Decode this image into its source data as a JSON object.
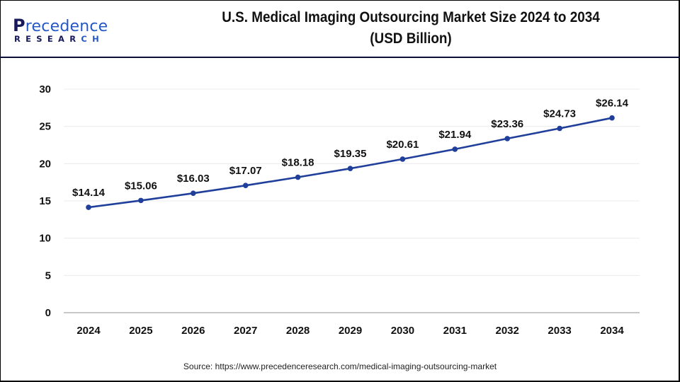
{
  "brand": {
    "logo_main_prefix": "P",
    "logo_main_rest": "recedence",
    "logo_sub_left": "RESEAR",
    "logo_sub_right": "CH"
  },
  "header": {
    "title_line1": "U.S. Medical Imaging Outsourcing Market Size 2024 to 2034",
    "title_line2": "(USD Billion)"
  },
  "footer": {
    "source": "Source: https://www.precedenceresearch.com/medical-imaging-outsourcing-market"
  },
  "colors": {
    "series_line": "#1f3f9b",
    "grid": "#ececec",
    "axis": "#b5b5b5",
    "header_divider": "#0b0f3a"
  },
  "chart_data": {
    "type": "line",
    "title": "U.S. Medical Imaging Outsourcing Market Size 2024 to 2034 (USD Billion)",
    "xlabel": "",
    "ylabel": "",
    "categories": [
      "2024",
      "2025",
      "2026",
      "2027",
      "2028",
      "2029",
      "2030",
      "2031",
      "2032",
      "2033",
      "2034"
    ],
    "series": [
      {
        "name": "Market Size (USD Billion)",
        "values": [
          14.14,
          15.06,
          16.03,
          17.07,
          18.18,
          19.35,
          20.61,
          21.94,
          23.36,
          24.73,
          26.14
        ],
        "labels": [
          "$14.14",
          "$15.06",
          "$16.03",
          "$17.07",
          "$18.18",
          "$19.35",
          "$20.61",
          "$21.94",
          "$23.36",
          "$24.73",
          "$26.14"
        ]
      }
    ],
    "ylim": [
      0,
      30
    ],
    "yticks": [
      0,
      5,
      10,
      15,
      20,
      25,
      30
    ],
    "grid": true,
    "legend": "none"
  }
}
